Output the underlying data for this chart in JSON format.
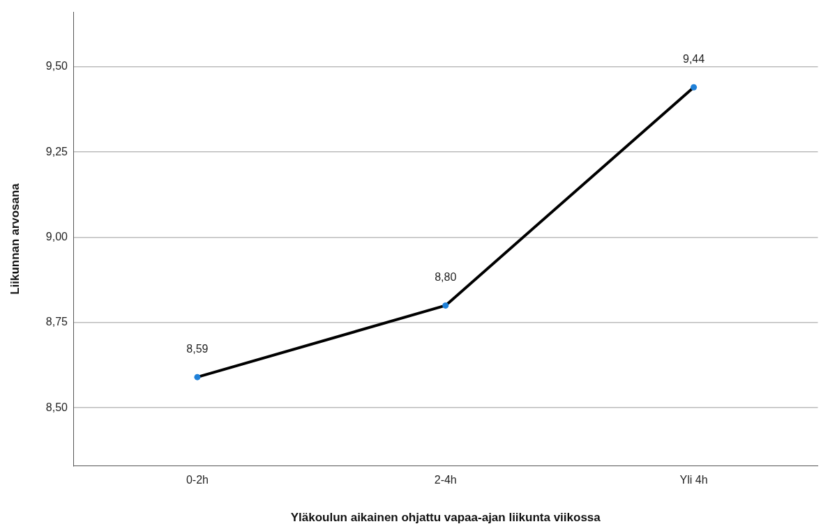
{
  "chart_data": {
    "type": "line",
    "xlabel": "Yläkoulun aikainen ohjattu vapaa-ajan liikunta viikossa",
    "ylabel": "Liikunnan arvosana",
    "categories": [
      "0-2h",
      "2-4h",
      "Yli 4h"
    ],
    "series": [
      {
        "color": "#000000",
        "colors": [
          "#1f80d8",
          "#1f80d8",
          "#1f80d8"
        ],
        "values": [
          8.59,
          8.8,
          9.44
        ],
        "value_labels": [
          "8,59",
          "8,80",
          "9,44"
        ]
      }
    ],
    "ylim": [
      8.33,
      9.66
    ],
    "yticks": [
      {
        "value": 8.5,
        "label": "8,50"
      },
      {
        "value": 8.75,
        "label": "8,75"
      },
      {
        "value": 9,
        "label": "9,00"
      },
      {
        "value": 9.25,
        "label": "9,25"
      },
      {
        "value": 9.5,
        "label": "9,50"
      }
    ],
    "grid": "y",
    "legend": false,
    "marker": "circle",
    "line_style": "solid"
  }
}
